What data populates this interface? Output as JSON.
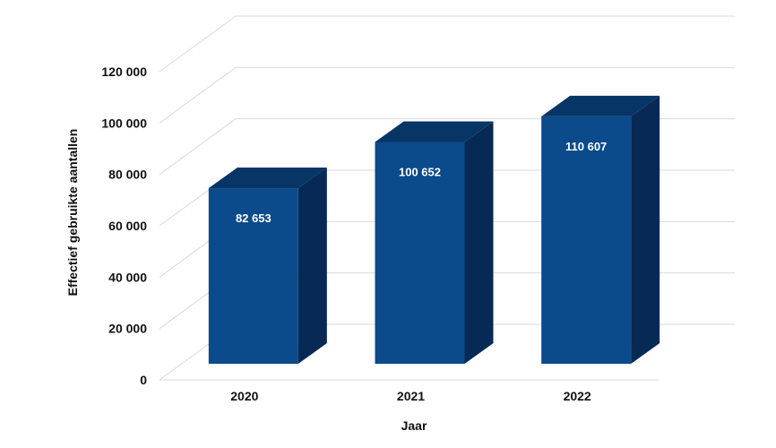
{
  "chart_data": {
    "type": "bar",
    "categories": [
      "2020",
      "2021",
      "2022"
    ],
    "values": [
      82653,
      100652,
      110607
    ],
    "data_labels": [
      "82 653",
      "100 652",
      "110 607"
    ],
    "xlabel": "Jaar",
    "ylabel": "Effectief gebruikte aantallen",
    "ylim": [
      0,
      120000
    ],
    "y_ticks": [
      0,
      20000,
      40000,
      60000,
      80000,
      100000,
      120000
    ],
    "y_tick_labels": [
      "0",
      "20 000",
      "40 000",
      "60 000",
      "80 000",
      "100 000",
      "120 000"
    ],
    "grid": true,
    "legend": "none",
    "style": "3d",
    "colors": {
      "bar_front": "#0b4a8b",
      "bar_side": "#062a55",
      "bar_top": "#073566",
      "grid": "#d9d9d9"
    }
  }
}
